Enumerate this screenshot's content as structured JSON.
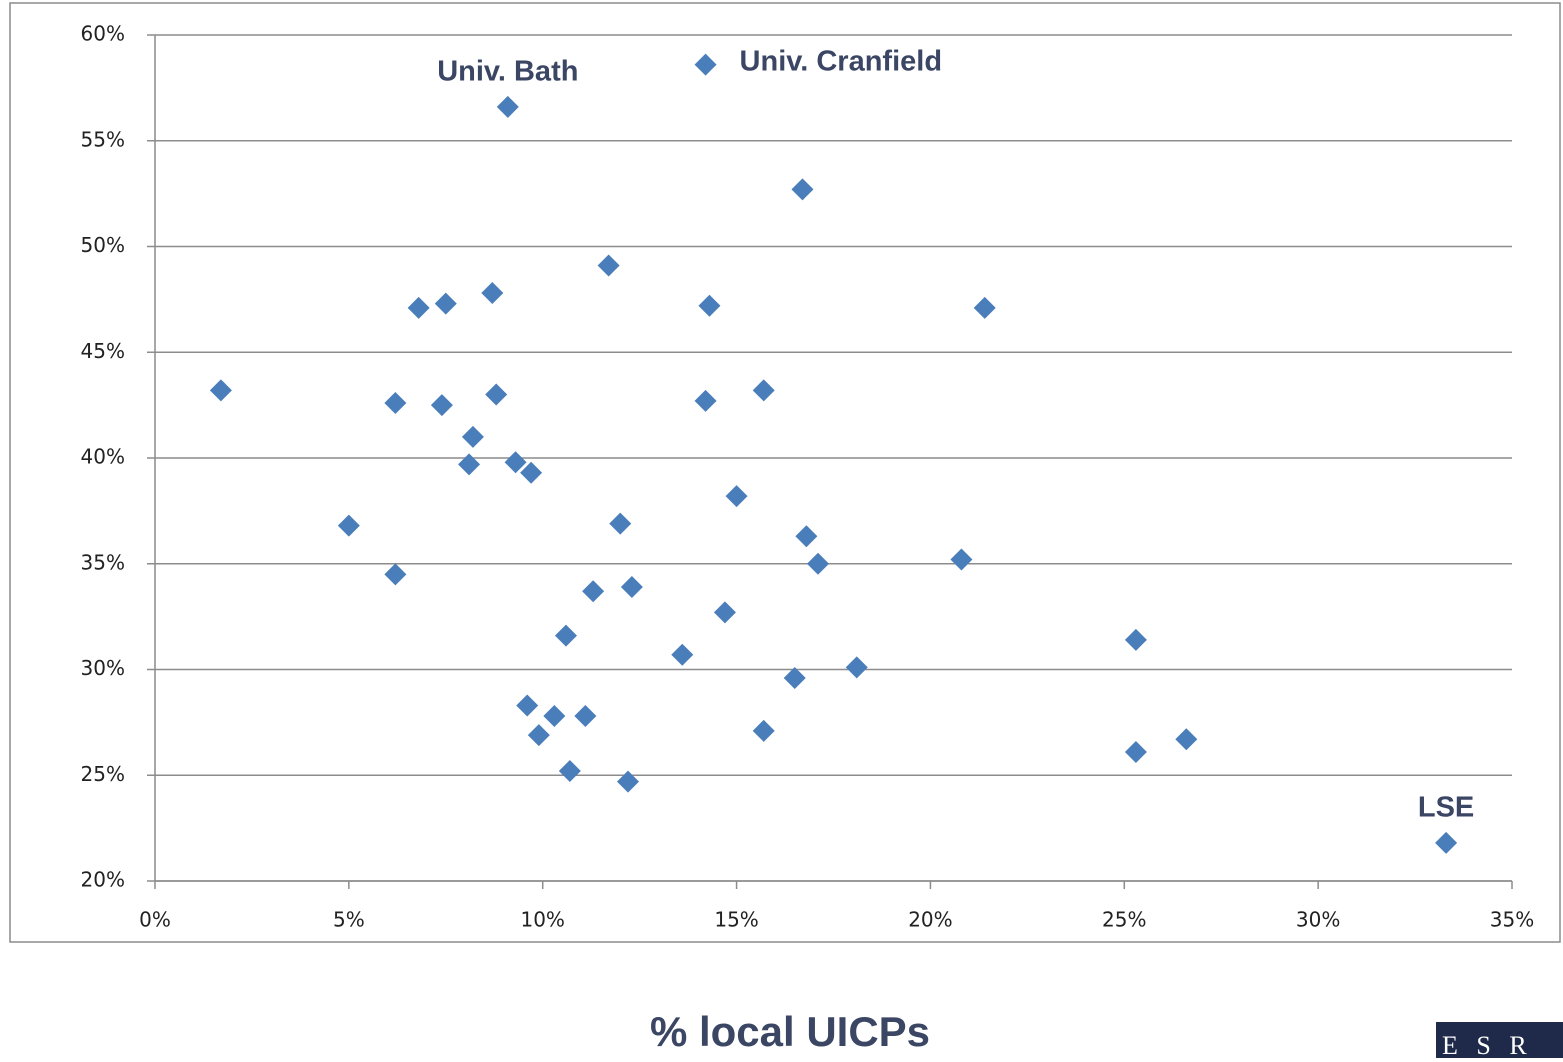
{
  "chart_data": {
    "type": "scatter",
    "x_label": "% local UICPs",
    "color": "#4a7ebb",
    "grid": true,
    "xlim": [
      0,
      35
    ],
    "ylim": [
      20,
      60
    ],
    "xticks": [
      {
        "value": 0,
        "label": "0%"
      },
      {
        "value": 5,
        "label": "5%"
      },
      {
        "value": 10,
        "label": "10%"
      },
      {
        "value": 15,
        "label": "15%"
      },
      {
        "value": 20,
        "label": "20%"
      },
      {
        "value": 25,
        "label": "25%"
      },
      {
        "value": 30,
        "label": "30%"
      },
      {
        "value": 35,
        "label": "35%"
      }
    ],
    "yticks": [
      {
        "value": 20,
        "label": "20%"
      },
      {
        "value": 25,
        "label": "25%"
      },
      {
        "value": 30,
        "label": "30%"
      },
      {
        "value": 35,
        "label": "35%"
      },
      {
        "value": 40,
        "label": "40%"
      },
      {
        "value": 45,
        "label": "45%"
      },
      {
        "value": 50,
        "label": "50%"
      },
      {
        "value": 55,
        "label": "55%"
      },
      {
        "value": 60,
        "label": "60%"
      }
    ],
    "x": [
      1.7,
      5.0,
      6.2,
      6.2,
      6.8,
      7.5,
      7.4,
      8.2,
      8.1,
      8.7,
      8.8,
      9.1,
      9.3,
      9.7,
      9.6,
      9.9,
      10.3,
      10.6,
      10.7,
      11.1,
      11.3,
      11.7,
      12.0,
      12.2,
      12.3,
      13.6,
      14.2,
      14.2,
      14.3,
      14.7,
      15.0,
      15.7,
      15.7,
      16.5,
      16.7,
      16.8,
      17.1,
      18.1,
      20.8,
      21.4,
      25.3,
      25.3,
      26.6,
      33.3
    ],
    "values": [
      43.2,
      36.8,
      34.5,
      42.6,
      47.1,
      47.3,
      42.5,
      41.0,
      39.7,
      47.8,
      43.0,
      56.6,
      39.8,
      39.3,
      28.3,
      26.9,
      27.8,
      31.6,
      25.2,
      27.8,
      33.7,
      49.1,
      36.9,
      24.7,
      33.9,
      30.7,
      58.6,
      42.7,
      47.2,
      32.7,
      38.2,
      43.2,
      27.1,
      29.6,
      52.7,
      36.3,
      35.0,
      30.1,
      35.2,
      47.1,
      31.4,
      26.1,
      26.7,
      21.8
    ],
    "point_labels": [
      null,
      null,
      null,
      null,
      null,
      null,
      null,
      null,
      null,
      null,
      null,
      "Univ. Bath",
      null,
      null,
      null,
      null,
      null,
      null,
      null,
      null,
      null,
      null,
      null,
      null,
      null,
      null,
      "Univ. Cranfield",
      null,
      null,
      null,
      null,
      null,
      null,
      null,
      null,
      null,
      null,
      null,
      null,
      null,
      null,
      null,
      null,
      "LSE"
    ]
  },
  "logo": "E S R"
}
